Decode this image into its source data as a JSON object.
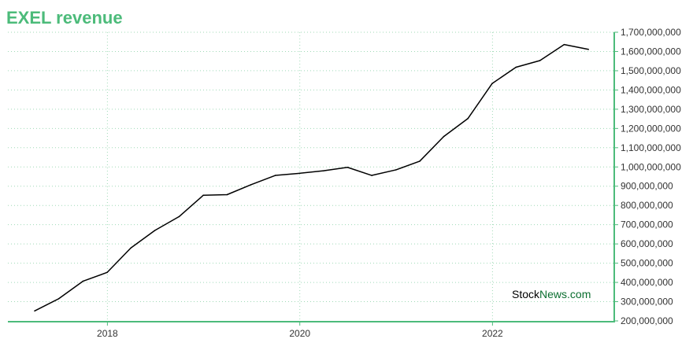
{
  "chart_data": {
    "type": "line",
    "title": "EXEL revenue",
    "xlabel": "",
    "ylabel": "",
    "x_ticks": [
      "2018",
      "2020",
      "2022"
    ],
    "y_ticks": [
      "1,700,000,000",
      "1,600,000,000",
      "1,500,000,000",
      "1,400,000,000",
      "1,300,000,000",
      "1,200,000,000",
      "1,100,000,000",
      "1,000,000,000",
      "900,000,000",
      "800,000,000",
      "700,000,000",
      "600,000,000",
      "500,000,000",
      "400,000,000",
      "300,000,000",
      "200,000,000"
    ],
    "ylim": [
      200000000,
      1700000000
    ],
    "grid": true,
    "legend": "none",
    "series": [
      {
        "color": "#000000",
        "points": [
          {
            "x": "2017-03-31",
            "y": 252000000
          },
          {
            "x": "2017-06-30",
            "y": 315000000
          },
          {
            "x": "2017-09-30",
            "y": 406000000
          },
          {
            "x": "2017-12-31",
            "y": 452000000
          },
          {
            "x": "2018-03-31",
            "y": 579000000
          },
          {
            "x": "2018-06-30",
            "y": 670000000
          },
          {
            "x": "2018-09-30",
            "y": 742000000
          },
          {
            "x": "2018-12-31",
            "y": 853000000
          },
          {
            "x": "2019-03-31",
            "y": 856000000
          },
          {
            "x": "2019-06-30",
            "y": 908000000
          },
          {
            "x": "2019-09-30",
            "y": 956000000
          },
          {
            "x": "2019-12-31",
            "y": 967000000
          },
          {
            "x": "2020-03-31",
            "y": 980000000
          },
          {
            "x": "2020-06-30",
            "y": 998000000
          },
          {
            "x": "2020-09-30",
            "y": 956000000
          },
          {
            "x": "2020-12-31",
            "y": 985000000
          },
          {
            "x": "2021-03-31",
            "y": 1030000000
          },
          {
            "x": "2021-06-30",
            "y": 1158000000
          },
          {
            "x": "2021-09-30",
            "y": 1252000000
          },
          {
            "x": "2021-12-31",
            "y": 1434000000
          },
          {
            "x": "2022-03-31",
            "y": 1518000000
          },
          {
            "x": "2022-06-30",
            "y": 1553000000
          },
          {
            "x": "2022-09-30",
            "y": 1636000000
          },
          {
            "x": "2022-12-31",
            "y": 1611000000
          }
        ]
      }
    ]
  },
  "colors": {
    "accent": "#4cbb7a",
    "grid": "#9fd9b6",
    "line": "#000000",
    "brand_dark": "#0a6e2f"
  },
  "watermark": {
    "part1": "Stock",
    "part2": "News",
    "part3": ".com"
  }
}
